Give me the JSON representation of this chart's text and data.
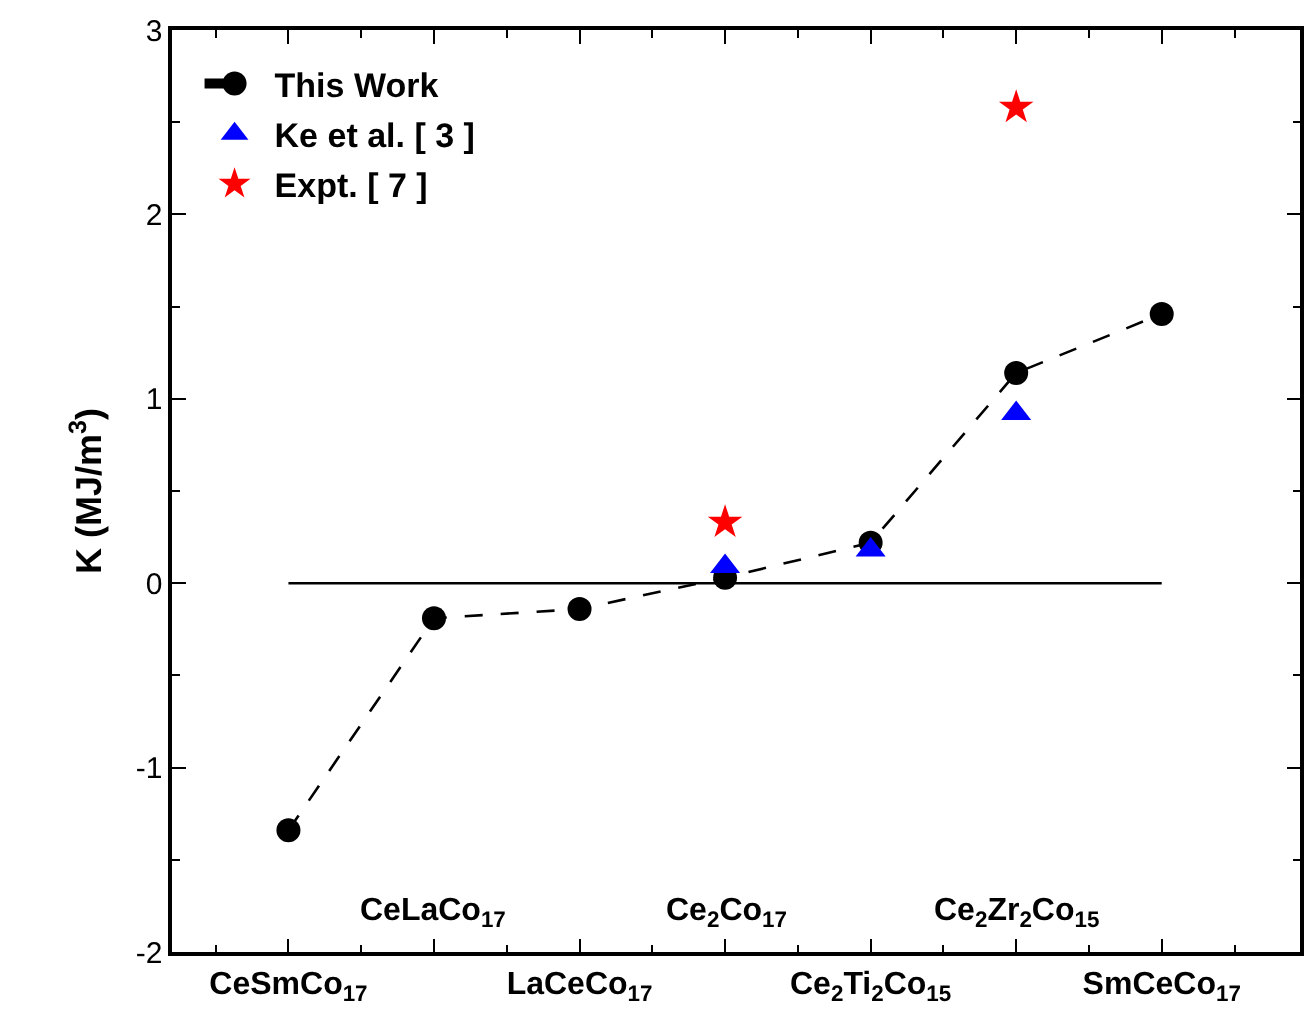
{
  "chart_data": {
    "type": "scatter",
    "ylabel": "K (MJ/m$^{3}$)",
    "categories": [
      "CeSmCo$_{17}$",
      "CeLaCo$_{17}$",
      "LaCeCo$_{17}$",
      "Ce$_{2}$Co$_{17}$",
      "Ce$_{2}$Ti$_{2}$Co$_{15}$",
      "Ce$_{2}$Zr$_{2}$Co$_{15}$",
      "SmCeCo$_{17}$"
    ],
    "series": [
      {
        "name": "This Work",
        "type": "line",
        "color": "#000000",
        "marker": "circle",
        "line_style": "dashed",
        "values": [
          -1.34,
          -0.19,
          -0.14,
          0.03,
          0.22,
          1.14,
          1.46
        ]
      },
      {
        "name": "Ke et al. [ 3 ]",
        "color": "#0000ff",
        "marker": "triangle",
        "values": [
          null,
          null,
          null,
          0.09,
          0.18,
          0.92,
          null
        ]
      },
      {
        "name": "Expt. [ 7 ]",
        "color": "#ff0000",
        "marker": "star",
        "values": [
          null,
          null,
          null,
          0.33,
          null,
          2.58,
          null
        ]
      }
    ],
    "ylim": [
      -2,
      3
    ],
    "yticks": [
      -2,
      -1,
      0,
      1,
      2,
      3
    ],
    "ref_lines": [
      {
        "axis": "y",
        "value": 0,
        "color": "#000000",
        "line_style": "solid"
      }
    ],
    "legend": "top left"
  }
}
